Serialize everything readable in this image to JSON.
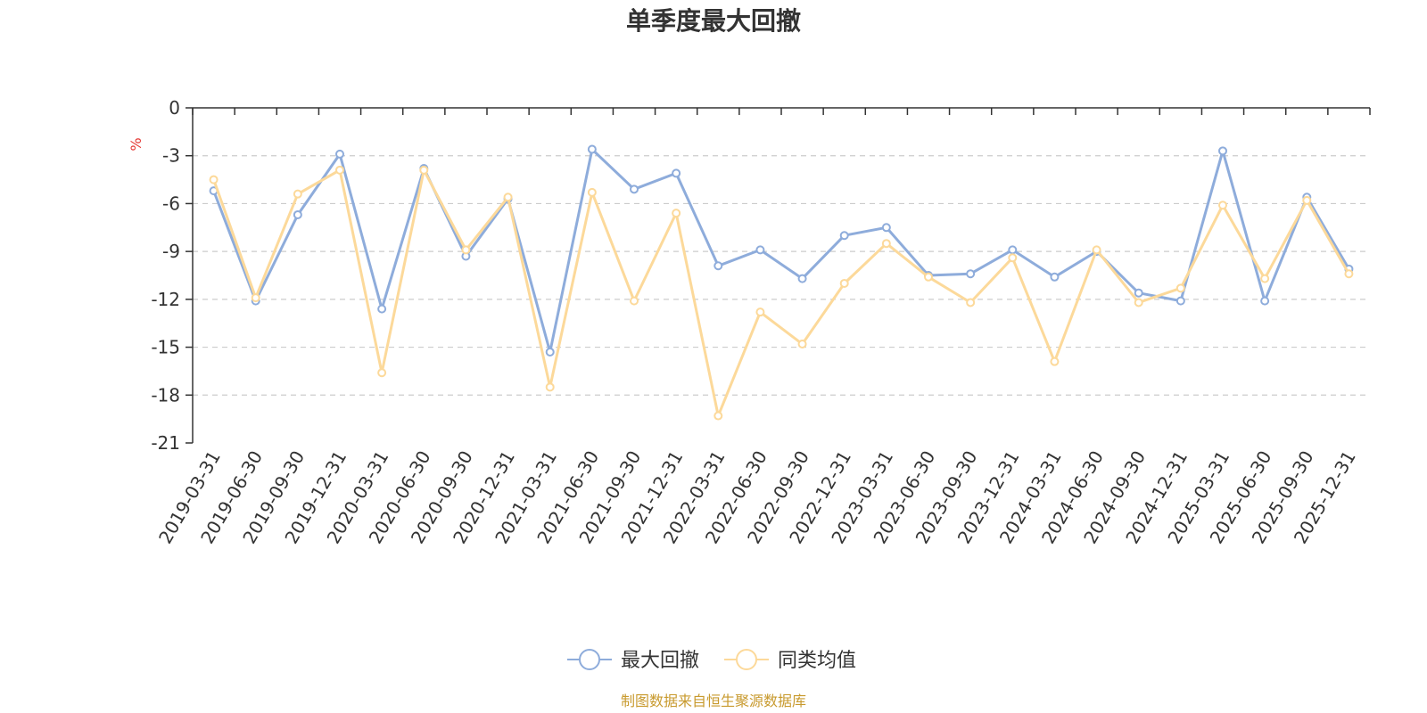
{
  "chart_data": {
    "type": "line",
    "title": "单季度最大回撤",
    "ylabel": "%",
    "ylim": [
      -21,
      0
    ],
    "yticks": [
      0,
      -3,
      -6,
      -9,
      -12,
      -15,
      -18,
      -21
    ],
    "grid": true,
    "legend_position": "bottom",
    "categories": [
      "2019-03-31",
      "2019-06-30",
      "2019-09-30",
      "2019-12-31",
      "2020-03-31",
      "2020-06-30",
      "2020-09-30",
      "2020-12-31",
      "2021-03-31",
      "2021-06-30",
      "2021-09-30",
      "2021-12-31",
      "2022-03-31",
      "2022-06-30",
      "2022-09-30",
      "2022-12-31",
      "2023-03-31",
      "2023-06-30",
      "2023-09-30",
      "2023-12-31",
      "2024-03-31",
      "2024-06-30",
      "2024-09-30",
      "2024-12-31",
      "2025-03-31",
      "2025-06-30",
      "2025-09-30",
      "2025-12-31"
    ],
    "series": [
      {
        "name": "最大回撤",
        "color": "#8EACDB",
        "values": [
          -5.2,
          -12.1,
          -6.7,
          -2.9,
          -12.6,
          -3.8,
          -9.3,
          -5.7,
          -15.3,
          -2.6,
          -5.1,
          -4.1,
          -9.9,
          -8.9,
          -10.7,
          -8.0,
          -7.5,
          -10.5,
          -10.4,
          -8.9,
          -10.6,
          -9.0,
          -11.6,
          -12.1,
          -2.7,
          -12.1,
          -5.6,
          -10.1
        ]
      },
      {
        "name": "同类均值",
        "color": "#FCD99A",
        "values": [
          -4.5,
          -11.9,
          -5.4,
          -3.9,
          -16.6,
          -3.9,
          -8.9,
          -5.6,
          -17.5,
          -5.3,
          -12.1,
          -6.6,
          -19.3,
          -12.8,
          -14.8,
          -11.0,
          -8.5,
          -10.6,
          -12.2,
          -9.4,
          -15.9,
          -8.9,
          -12.2,
          -11.3,
          -6.1,
          -10.7,
          -5.8,
          -10.4
        ]
      }
    ],
    "source": "制图数据来自恒生聚源数据库",
    "source_color": "#C89A2E",
    "unit_color": "#E53935"
  }
}
